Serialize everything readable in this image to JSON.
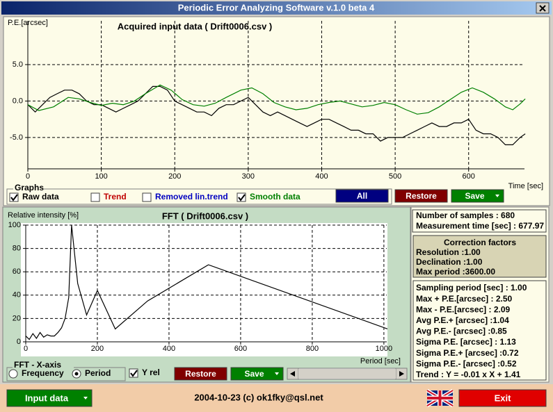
{
  "window_title": "Periodic Error Analyzing Software v.1.0 beta 4",
  "chart_data": [
    {
      "type": "line",
      "title": "Acquired input data ( Drift0006.csv )",
      "ylabel": "P.E.[arcsec]",
      "xlabel": "Time [sec]",
      "xlim": [
        0,
        676
      ],
      "ylim": [
        -9.3,
        11
      ],
      "xticks": [
        0,
        100,
        200,
        300,
        400,
        500,
        600
      ],
      "yticks": [
        {
          "value": -5,
          "label": "-5.0"
        },
        {
          "value": 0,
          "label": "0.0"
        },
        {
          "value": 5,
          "label": "5.0"
        }
      ],
      "grid": true,
      "series": [
        {
          "color": "#000000",
          "x": [
            0,
            10,
            20,
            30,
            40,
            50,
            60,
            70,
            80,
            90,
            100,
            110,
            120,
            130,
            140,
            150,
            160,
            170,
            180,
            190,
            200,
            210,
            220,
            230,
            240,
            250,
            260,
            270,
            280,
            290,
            300,
            310,
            320,
            330,
            340,
            350,
            360,
            370,
            380,
            390,
            400,
            410,
            420,
            430,
            440,
            450,
            460,
            470,
            480,
            490,
            500,
            510,
            520,
            530,
            540,
            550,
            560,
            570,
            580,
            590,
            600,
            610,
            620,
            630,
            640,
            650,
            660,
            670,
            677
          ],
          "values": [
            -0.5,
            -1.5,
            -0.5,
            0.5,
            1,
            1.5,
            1.5,
            1,
            0,
            -0.5,
            -0.5,
            -1,
            -1.5,
            -1,
            -0.5,
            0,
            1,
            2,
            2,
            1.5,
            0,
            -0.5,
            -1,
            -1.5,
            -1.5,
            -2,
            -1,
            -0.5,
            -0.5,
            0,
            0.5,
            -0.5,
            -1.5,
            -2,
            -1.5,
            -2,
            -2.5,
            -3,
            -3.5,
            -3,
            -2.5,
            -2.5,
            -3,
            -3.5,
            -4,
            -4,
            -4.5,
            -4.5,
            -5.5,
            -5,
            -5,
            -5,
            -4.5,
            -4,
            -3.5,
            -3,
            -3.5,
            -3.5,
            -3,
            -3,
            -2.5,
            -4,
            -4.5,
            -4.5,
            -5,
            -6,
            -6,
            -5,
            -4.5
          ]
        },
        {
          "color": "#008000",
          "x": [
            0,
            15,
            35,
            55,
            70,
            85,
            100,
            115,
            130,
            145,
            160,
            180,
            195,
            210,
            225,
            240,
            255,
            270,
            290,
            305,
            320,
            335,
            350,
            365,
            380,
            395,
            410,
            425,
            440,
            455,
            470,
            485,
            500,
            515,
            530,
            545,
            560,
            575,
            590,
            605,
            620,
            635,
            650,
            660,
            670,
            677
          ],
          "values": [
            -0.5,
            -1.3,
            -0.8,
            0.5,
            0.3,
            -0.2,
            -0.6,
            -0.3,
            -0.5,
            0,
            1,
            2.2,
            1.5,
            0.2,
            -0.5,
            -0.7,
            -0.3,
            0.5,
            1.5,
            1.8,
            1,
            -0.2,
            -0.8,
            -1.2,
            -1,
            -0.5,
            -0.2,
            0,
            -0.4,
            -0.8,
            -0.6,
            -0.2,
            -0.5,
            -1.2,
            -1.8,
            -1.6,
            -0.8,
            0.2,
            1.2,
            1.8,
            1.2,
            0.3,
            -0.8,
            -1.2,
            -0.4,
            0.3
          ]
        }
      ]
    },
    {
      "type": "line",
      "title": "FFT ( Drift0006.csv )",
      "ylabel": "Relative intensity [%]",
      "xlabel": "Period [sec]",
      "xlim": [
        0,
        1008
      ],
      "ylim": [
        0,
        100
      ],
      "xticks": [
        0,
        200,
        400,
        600,
        800,
        1000
      ],
      "yticks": [
        0,
        20,
        40,
        60,
        80,
        100
      ],
      "grid": true,
      "series": [
        {
          "color": "#000000",
          "x": [
            0,
            10,
            20,
            30,
            40,
            50,
            60,
            70,
            80,
            90,
            100,
            110,
            120,
            128,
            145,
            170,
            200,
            250,
            340,
            510,
            1020
          ],
          "values": [
            5,
            2,
            7,
            3,
            8,
            4,
            6,
            5,
            5,
            8,
            12,
            20,
            38,
            100,
            50,
            23,
            44,
            11,
            35,
            66,
            10
          ]
        }
      ]
    }
  ],
  "graphs": {
    "title": "Graphs",
    "options": [
      {
        "label": "Raw data",
        "color": "#000000",
        "checked": true
      },
      {
        "label": "Trend",
        "color": "#c00000",
        "checked": false
      },
      {
        "label": "Removed lin.trend",
        "color": "#0000c0",
        "checked": false
      },
      {
        "label": "Smooth data",
        "color": "#008000",
        "checked": true
      }
    ]
  },
  "top_buttons": [
    {
      "label": "All",
      "color": "#000080",
      "dropdown": false
    },
    {
      "label": "Restore",
      "color": "#800000",
      "dropdown": false
    },
    {
      "label": "Save",
      "color": "#008000",
      "dropdown": true
    }
  ],
  "fft_axis": {
    "title": "FFT - X-axis",
    "options": [
      {
        "label": "Frequency",
        "selected": false
      },
      {
        "label": "Period",
        "selected": true
      }
    ]
  },
  "y_rel": {
    "label": "Y rel",
    "checked": true
  },
  "fft_buttons": [
    {
      "label": "Restore",
      "color": "#800000",
      "dropdown": false
    },
    {
      "label": "Save",
      "color": "#008000",
      "dropdown": true
    }
  ],
  "stats": {
    "summary": [
      "Number of samples : 680",
      "Measurement time [sec] : 677.97"
    ],
    "correction_title": "Correction factors",
    "correction": [
      "Resolution :1.00",
      "Declination :1.00",
      "Max period :3600.00"
    ],
    "details": [
      "Sampling period [sec] : 1.00",
      "Max + P.E.[arcsec] : 2.50",
      "Max - P.E.[arcsec] : 2.09",
      "Avg P.E.+ [arcsec] :1.04",
      "Avg P.E.- [arcsec] :0.85",
      "Sigma P.E. [arcsec] : 1.13",
      "Sigma P.E.+ [arcsec] :0.72",
      "Sigma P.E.- [arcsec] :0.52",
      "Trend : Y = -0.01 x X + 1.41"
    ]
  },
  "footer": {
    "input_button": {
      "label": "Input data",
      "color": "#008000",
      "dropdown": true
    },
    "credit": "2004-10-23 (c) ok1fky@qsl.net",
    "exit_button": {
      "label": "Exit",
      "color": "#e00000",
      "dropdown": false
    }
  }
}
